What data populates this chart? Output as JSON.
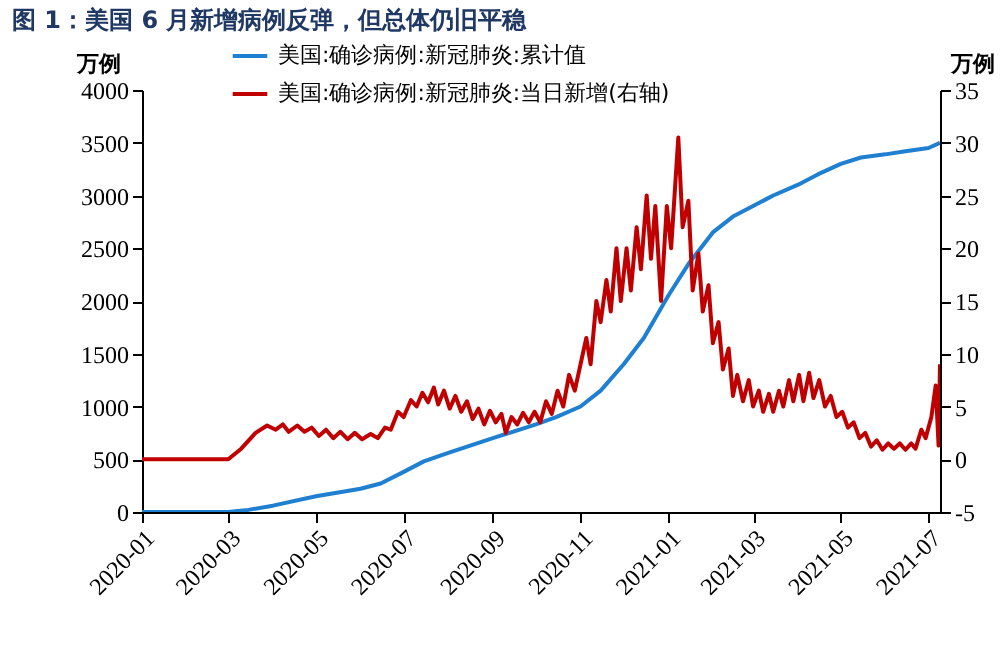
{
  "chart_data": {
    "type": "line",
    "title": "图 1：美国 6 月新增病例反弹，但总体仍旧平稳",
    "ylabel": "万例",
    "y2label": "万例",
    "legend": "top",
    "xlim": [
      "2020-01-01",
      "2021-07-09"
    ],
    "xticks": [
      "2020-01",
      "2020-03",
      "2020-05",
      "2020-07",
      "2020-09",
      "2020-11",
      "2021-01",
      "2021-03",
      "2021-05",
      "2021-07"
    ],
    "ylim": [
      0,
      4000
    ],
    "yticks": [
      0,
      500,
      {
        "value": 1000,
        "label": "1000"
      },
      {
        "value": 1500,
        "label": "1500"
      },
      {
        "value": 2000,
        "label": "2000"
      },
      {
        "value": 2500,
        "label": "2500"
      },
      {
        "value": 3000,
        "label": "3000"
      },
      {
        "value": 3500,
        "label": "3500"
      },
      {
        "value": 4000,
        "label": "4000"
      }
    ],
    "y2lim": [
      -5,
      35
    ],
    "y2ticks": [
      -5,
      0,
      5,
      10,
      15,
      20,
      25,
      30,
      35
    ],
    "series": [
      {
        "name": "美国:确诊病例:新冠肺炎:累计值",
        "color": "#1f7fd0",
        "x": [
          "2020-01-01",
          "2020-03-01",
          "2020-03-15",
          "2020-04-01",
          "2020-05-01",
          "2020-06-01",
          "2020-06-15",
          "2020-07-01",
          "2020-07-15",
          "2020-08-01",
          "2020-09-01",
          "2020-10-01",
          "2020-10-15",
          "2020-11-01",
          "2020-11-15",
          "2020-12-01",
          "2020-12-15",
          "2021-01-01",
          "2021-01-15",
          "2021-02-01",
          "2021-02-15",
          "2021-03-01",
          "2021-03-15",
          "2021-04-01",
          "2021-04-15",
          "2021-05-01",
          "2021-05-15",
          "2021-06-01",
          "2021-06-15",
          "2021-07-01",
          "2021-07-09"
        ],
        "values": [
          0,
          0,
          20,
          60,
          150,
          220,
          270,
          380,
          480,
          560,
          700,
          830,
          900,
          1000,
          1150,
          1400,
          1650,
          2050,
          2350,
          2650,
          2800,
          2900,
          3000,
          3100,
          3200,
          3300,
          3360,
          3390,
          3420,
          3450,
          3500
        ]
      },
      {
        "name": "美国:确诊病例:新冠肺炎:当日新增(右轴)",
        "color": "#c00000",
        "axis": "y2",
        "x": [
          "2020-01-01",
          "2020-03-01",
          "2020-03-10",
          "2020-03-20",
          "2020-03-28",
          "2020-04-03",
          "2020-04-08",
          "2020-04-12",
          "2020-04-18",
          "2020-04-23",
          "2020-04-28",
          "2020-05-03",
          "2020-05-08",
          "2020-05-13",
          "2020-05-18",
          "2020-05-23",
          "2020-05-28",
          "2020-06-02",
          "2020-06-08",
          "2020-06-13",
          "2020-06-18",
          "2020-06-22",
          "2020-06-27",
          "2020-07-01",
          "2020-07-06",
          "2020-07-10",
          "2020-07-14",
          "2020-07-18",
          "2020-07-22",
          "2020-07-25",
          "2020-07-29",
          "2020-08-02",
          "2020-08-06",
          "2020-08-10",
          "2020-08-14",
          "2020-08-18",
          "2020-08-22",
          "2020-08-26",
          "2020-08-30",
          "2020-09-03",
          "2020-09-07",
          "2020-09-10",
          "2020-09-14",
          "2020-09-18",
          "2020-09-22",
          "2020-09-26",
          "2020-09-30",
          "2020-10-04",
          "2020-10-08",
          "2020-10-12",
          "2020-10-16",
          "2020-10-20",
          "2020-10-24",
          "2020-10-28",
          "2020-11-01",
          "2020-11-05",
          "2020-11-08",
          "2020-11-12",
          "2020-11-15",
          "2020-11-19",
          "2020-11-22",
          "2020-11-26",
          "2020-11-29",
          "2020-12-03",
          "2020-12-06",
          "2020-12-10",
          "2020-12-13",
          "2020-12-17",
          "2020-12-20",
          "2020-12-23",
          "2020-12-27",
          "2020-12-31",
          "2021-01-03",
          "2021-01-08",
          "2021-01-11",
          "2021-01-15",
          "2021-01-18",
          "2021-01-22",
          "2021-01-25",
          "2021-01-29",
          "2021-02-01",
          "2021-02-05",
          "2021-02-08",
          "2021-02-12",
          "2021-02-15",
          "2021-02-18",
          "2021-02-22",
          "2021-02-26",
          "2021-03-01",
          "2021-03-05",
          "2021-03-08",
          "2021-03-12",
          "2021-03-15",
          "2021-03-19",
          "2021-03-22",
          "2021-03-26",
          "2021-03-29",
          "2021-04-02",
          "2021-04-05",
          "2021-04-09",
          "2021-04-12",
          "2021-04-16",
          "2021-04-20",
          "2021-04-24",
          "2021-04-28",
          "2021-05-02",
          "2021-05-06",
          "2021-05-10",
          "2021-05-14",
          "2021-05-18",
          "2021-05-22",
          "2021-05-26",
          "2021-05-30",
          "2021-06-03",
          "2021-06-07",
          "2021-06-11",
          "2021-06-15",
          "2021-06-19",
          "2021-06-22",
          "2021-06-26",
          "2021-06-29",
          "2021-07-03",
          "2021-07-06",
          "2021-07-08",
          "2021-07-09"
        ],
        "values": [
          0,
          0,
          1,
          2.5,
          3.2,
          2.8,
          3.3,
          2.6,
          3.2,
          2.6,
          3,
          2.2,
          2.8,
          2,
          2.6,
          1.9,
          2.5,
          1.9,
          2.4,
          2,
          3,
          2.8,
          4.5,
          4,
          5.6,
          5,
          6.3,
          5.4,
          6.8,
          5.2,
          6.5,
          4.8,
          6,
          4.5,
          5.5,
          3.8,
          4.8,
          3.3,
          4.6,
          3.5,
          4.3,
          2.5,
          4,
          3.3,
          4.4,
          3.5,
          4.5,
          3.5,
          5.5,
          4.3,
          6.5,
          5,
          8,
          6.5,
          9,
          11.5,
          9,
          15,
          13,
          17,
          14,
          20,
          15,
          20,
          16,
          22,
          18,
          25,
          19,
          24,
          15,
          24,
          20,
          30.5,
          22,
          24.5,
          16,
          19.5,
          14,
          16.5,
          11,
          13,
          8.5,
          10.5,
          6,
          8,
          5.5,
          7.5,
          5,
          6.5,
          4.5,
          6.2,
          4.5,
          6.5,
          5,
          7.5,
          5.5,
          8,
          5.5,
          8.2,
          5.8,
          7.5,
          5,
          6,
          4,
          4.5,
          3,
          3.5,
          2,
          2.5,
          1.2,
          1.8,
          0.9,
          1.5,
          1,
          1.5,
          0.9,
          1.5,
          1,
          2.8,
          2,
          4,
          7,
          1.3,
          9
        ]
      }
    ]
  }
}
